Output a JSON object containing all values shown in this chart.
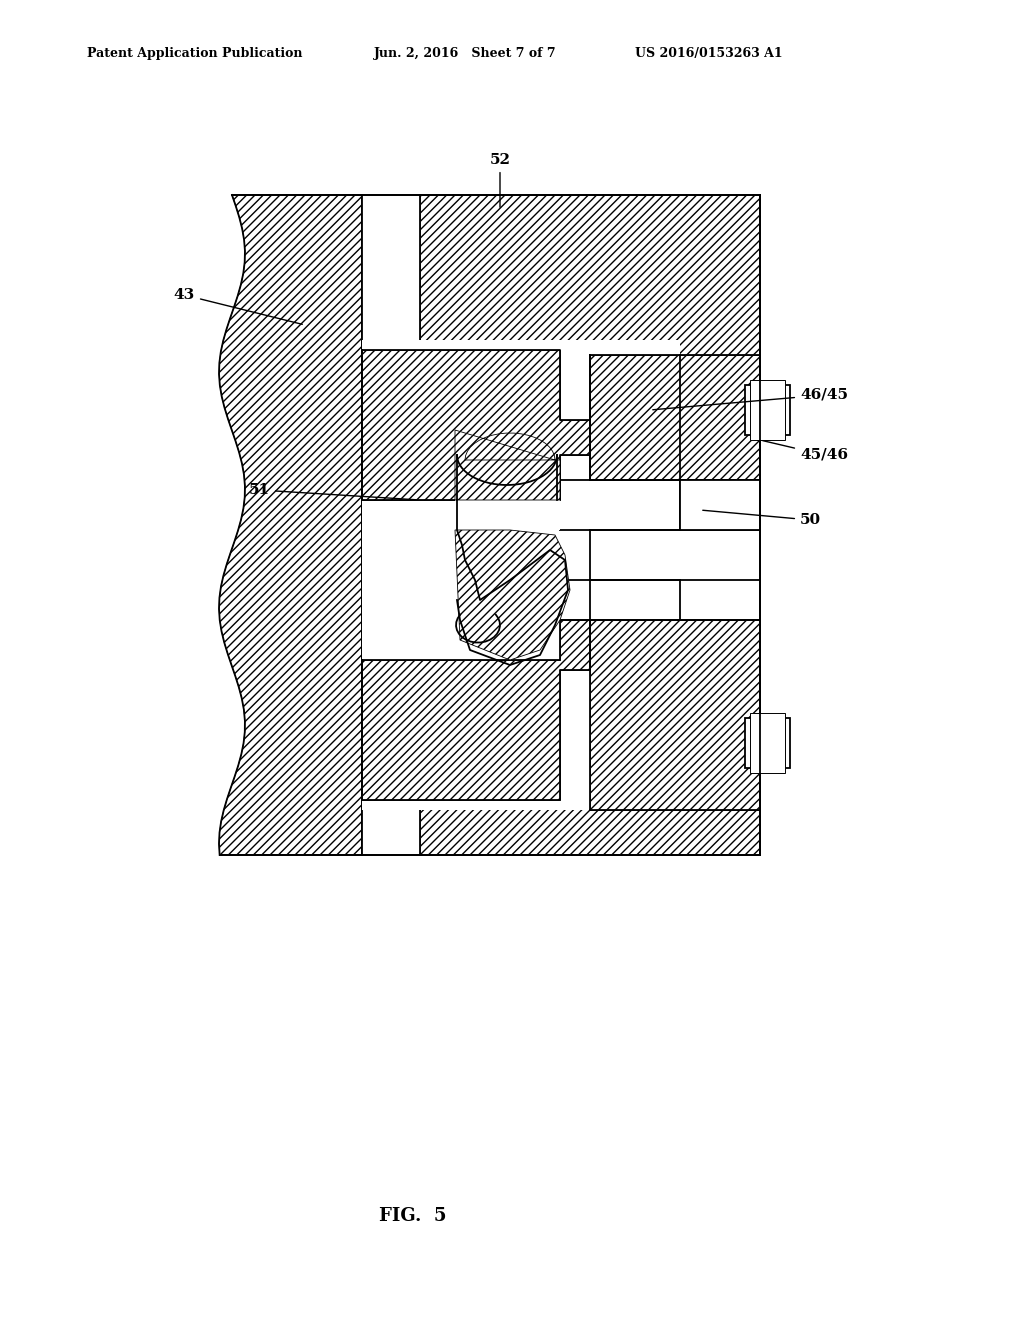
{
  "header_left": "Patent Application Publication",
  "header_center": "Jun. 2, 2016   Sheet 7 of 7",
  "header_right": "US 2016/0153263 A1",
  "figure_label": "FIG.  5",
  "bg_color": "#ffffff",
  "line_color": "#000000",
  "hatch_color": "#000000"
}
